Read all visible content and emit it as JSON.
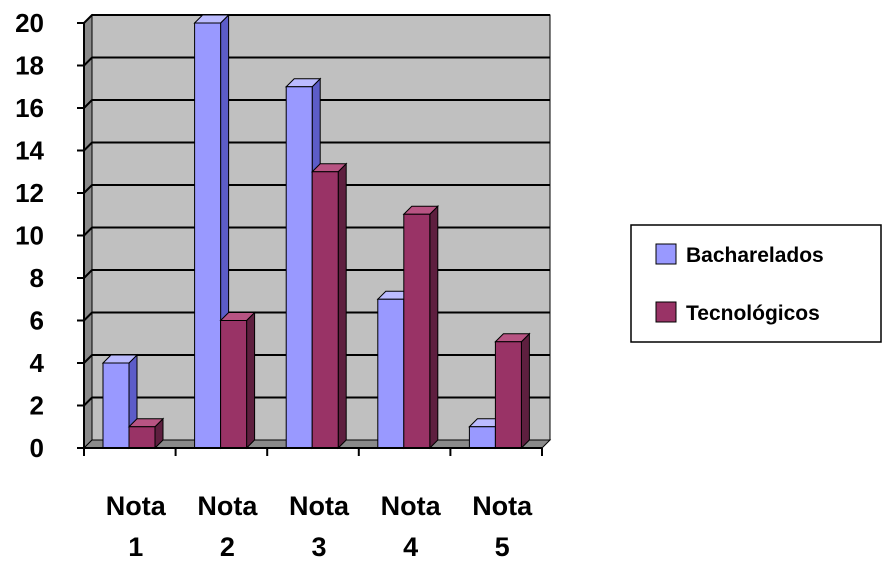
{
  "chart_data": {
    "type": "bar",
    "title": "",
    "xlabel": "",
    "ylabel": "",
    "categories": [
      {
        "line1": "Nota",
        "line2": "1"
      },
      {
        "line1": "Nota",
        "line2": "2"
      },
      {
        "line1": "Nota",
        "line2": "3"
      },
      {
        "line1": "Nota",
        "line2": "4"
      },
      {
        "line1": "Nota",
        "line2": "5"
      }
    ],
    "series": [
      {
        "name": "Bacharelados",
        "values": [
          4,
          20,
          17,
          7,
          1
        ],
        "color": "#9999ff",
        "side_color": "#5c5cc8",
        "top_color": "#bbbbff"
      },
      {
        "name": "Tecnológicos",
        "values": [
          1,
          6,
          13,
          11,
          5
        ],
        "color": "#993366",
        "side_color": "#5e1f3f",
        "top_color": "#b85483"
      }
    ],
    "ylim": [
      0,
      20
    ],
    "yticks": [
      "0",
      "2",
      "4",
      "6",
      "8",
      "10",
      "12",
      "14",
      "16",
      "18",
      "20"
    ],
    "grid": true,
    "legend_position": "right",
    "colors": {
      "wall": "#c0c0c0",
      "side_wall": "#8a8a8a",
      "floor": "#8a8a8a",
      "gridline": "#000000"
    }
  }
}
